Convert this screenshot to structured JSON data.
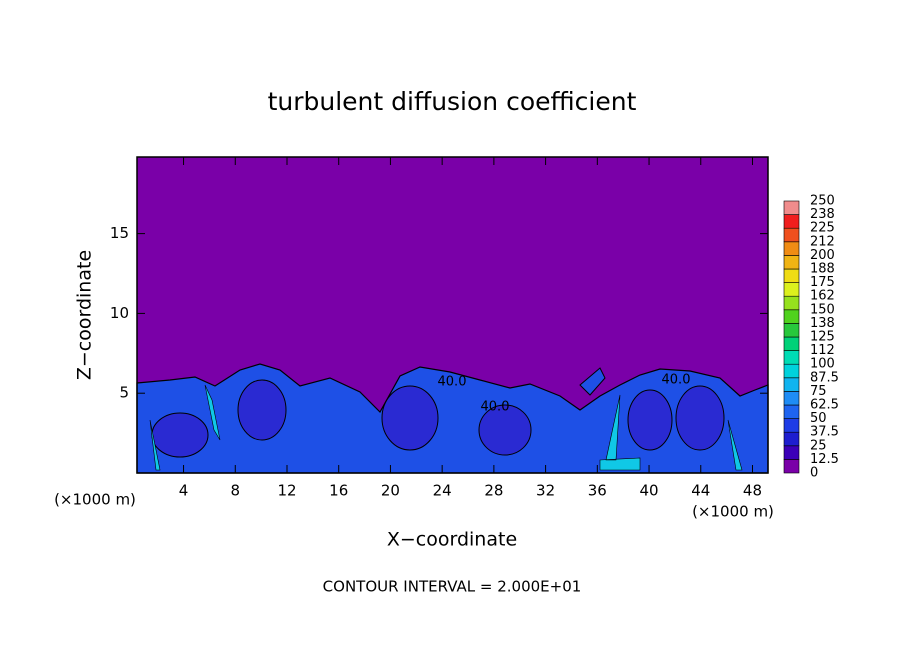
{
  "chart_data": {
    "type": "contour",
    "title": "turbulent diffusion coefficient",
    "xlabel": "X−coordinate",
    "ylabel": "Z−coordinate",
    "x_unit_label": "(×1000 m)",
    "footer": "CONTOUR INTERVAL = 2.000E+01",
    "xlim": [
      0.4,
      49.2
    ],
    "ylim": [
      0,
      19.8
    ],
    "xticks": [
      4,
      8,
      12,
      16,
      20,
      24,
      28,
      32,
      36,
      40,
      44,
      48
    ],
    "yticks": [
      5,
      10,
      15
    ],
    "contour_labels": [
      "40.0",
      "40.0",
      "40.0"
    ],
    "colorbar": {
      "ticks": [
        0,
        12.5,
        25,
        37.5,
        50,
        62.5,
        75,
        87.5,
        100,
        112,
        125,
        138,
        150,
        162,
        175,
        188,
        200,
        212,
        225,
        238,
        250
      ],
      "colors": [
        "#7a00a8",
        "#3c00b8",
        "#1e1ecf",
        "#1e3ce6",
        "#1e64f0",
        "#1e8cf5",
        "#10b4f0",
        "#00d2dc",
        "#00dcb4",
        "#00d278",
        "#28c83c",
        "#50d21e",
        "#96e11e",
        "#dcf01e",
        "#f0dc14",
        "#f0b414",
        "#f08c14",
        "#f0501e",
        "#f01e1e",
        "#f08c8c"
      ]
    }
  }
}
